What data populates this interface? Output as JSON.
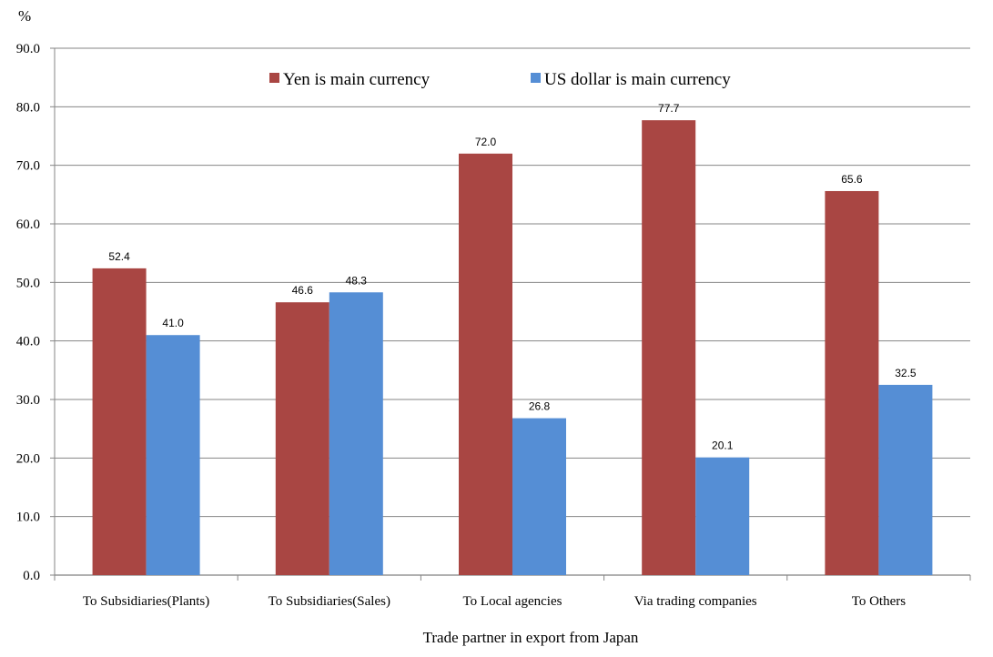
{
  "chart_data": {
    "type": "bar",
    "title": "",
    "xlabel": "Trade partner in export from Japan",
    "ylabel": "%",
    "ylim": [
      0,
      90
    ],
    "yticks": [
      "0.0",
      "10.0",
      "20.0",
      "30.0",
      "40.0",
      "50.0",
      "60.0",
      "70.0",
      "80.0",
      "90.0"
    ],
    "grid": true,
    "legend_position": "top-center",
    "categories": [
      "To Subsidiaries(Plants)",
      "To Subsidiaries(Sales)",
      "To Local agencies",
      "Via trading companies",
      "To Others"
    ],
    "series": [
      {
        "name": "Yen is main currency",
        "color": "#A94643",
        "values": [
          52.4,
          46.6,
          72.0,
          77.7,
          65.6
        ],
        "labels": [
          "52.4",
          "46.6",
          "72.0",
          "77.7",
          "65.6"
        ]
      },
      {
        "name": "US dollar is main currency",
        "color": "#558ED5",
        "values": [
          41.0,
          48.3,
          26.8,
          20.1,
          32.5
        ],
        "labels": [
          "41.0",
          "48.3",
          "26.8",
          "20.1",
          "32.5"
        ]
      }
    ]
  }
}
